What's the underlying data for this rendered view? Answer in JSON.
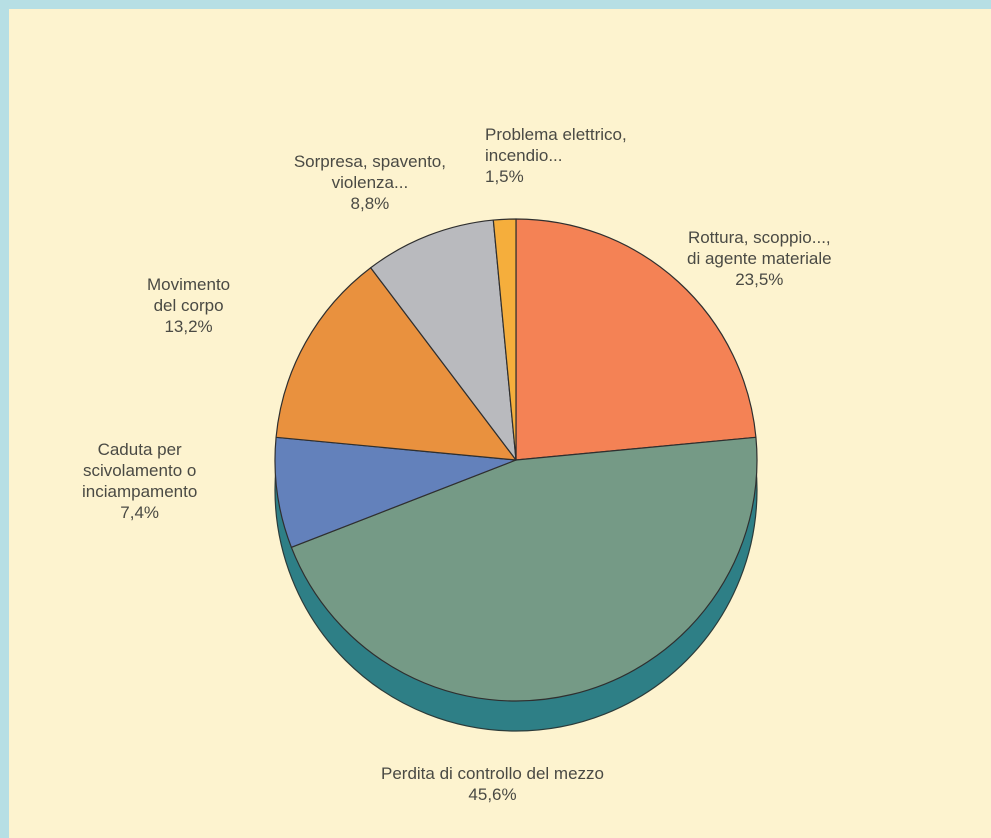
{
  "chart_data": {
    "type": "pie",
    "title": "",
    "slices": [
      {
        "name": "Rottura, scoppio..., di agente materiale",
        "label_lines": [
          "Rottura, scoppio...,",
          "di agente materiale"
        ],
        "value": 23.5,
        "value_label": "23,5%",
        "color": "#f48255"
      },
      {
        "name": "Perdita di controllo del mezzo",
        "label_lines": [
          "Perdita di controllo del mezzo"
        ],
        "value": 45.6,
        "value_label": "45,6%",
        "color": "#759a86"
      },
      {
        "name": "Caduta per scivolamento o inciampamento",
        "label_lines": [
          "Caduta per",
          "scivolamento o",
          "inciampamento"
        ],
        "value": 7.4,
        "value_label": "7,4%",
        "color": "#6381bb"
      },
      {
        "name": "Movimento del corpo",
        "label_lines": [
          "Movimento",
          "del corpo"
        ],
        "value": 13.2,
        "value_label": "13,2%",
        "color": "#e9913e"
      },
      {
        "name": "Sorpresa, spavento, violenza...",
        "label_lines": [
          "Sorpresa, spavento,",
          "violenza..."
        ],
        "value": 8.8,
        "value_label": "8,8%",
        "color": "#b9babe"
      },
      {
        "name": "Problema elettrico, incendio...",
        "label_lines": [
          "Problema elettrico,",
          "incendio..."
        ],
        "value": 1.5,
        "value_label": "1,5%",
        "color": "#f5ae3c"
      }
    ],
    "start_angle": "12 o'clock",
    "direction": "clockwise",
    "depth_color": "#2e7f86"
  }
}
